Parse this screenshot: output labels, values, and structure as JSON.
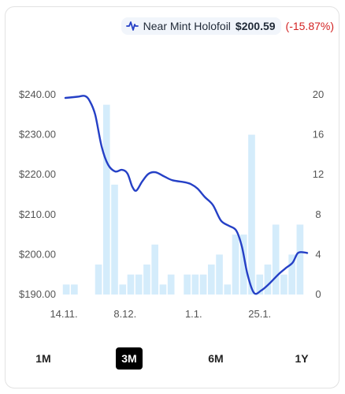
{
  "legend": {
    "icon": "pulse-icon",
    "name": "Near Mint Holofoil",
    "price": "$200.59",
    "change": "(-15.87%)",
    "change_color": "#d32222",
    "line_color": "#2540c6",
    "bar_color": "#d4ecfb"
  },
  "ranges": [
    {
      "label": "1M",
      "active": false
    },
    {
      "label": "3M",
      "active": true
    },
    {
      "label": "6M",
      "active": false
    },
    {
      "label": "1Y",
      "active": false
    }
  ],
  "chart_data": {
    "type": "bar+line",
    "x_ticks": [
      "14.11.",
      "8.12.",
      "1.1.",
      "25.1."
    ],
    "left_axis": {
      "ticks": [
        "$190.00",
        "$200.00",
        "$210.00",
        "$220.00",
        "$230.00",
        "$240.00"
      ],
      "range": [
        190,
        240
      ]
    },
    "right_axis": {
      "ticks": [
        "0",
        "4",
        "8",
        "12",
        "16",
        "20"
      ],
      "range": [
        0,
        20
      ]
    },
    "grid": false,
    "series": [
      {
        "type": "bar",
        "axis": "right",
        "values": [
          1,
          1,
          0,
          0,
          3,
          19,
          11,
          1,
          2,
          2,
          3,
          5,
          1,
          2,
          0,
          2,
          2,
          2,
          3,
          4,
          1,
          6,
          6,
          16,
          2,
          3,
          7,
          2,
          4,
          7
        ]
      },
      {
        "type": "line",
        "axis": "left",
        "points": [
          [
            0,
            239.2
          ],
          [
            1.5,
            239.5
          ],
          [
            2.4,
            239.7
          ],
          [
            3.0,
            238.5
          ],
          [
            3.7,
            235.0
          ],
          [
            4.5,
            227.0
          ],
          [
            5.3,
            222.5
          ],
          [
            6.2,
            220.8
          ],
          [
            7.0,
            221.2
          ],
          [
            7.7,
            220.3
          ],
          [
            8.3,
            217.0
          ],
          [
            8.8,
            216.0
          ],
          [
            9.5,
            218.2
          ],
          [
            10.3,
            220.2
          ],
          [
            11.2,
            220.6
          ],
          [
            12.3,
            219.5
          ],
          [
            13.3,
            218.6
          ],
          [
            14.8,
            218.1
          ],
          [
            15.6,
            217.6
          ],
          [
            16.4,
            216.5
          ],
          [
            17.3,
            214.4
          ],
          [
            18.3,
            212.4
          ],
          [
            19.3,
            208.5
          ],
          [
            20.3,
            207.2
          ],
          [
            21.2,
            206.0
          ],
          [
            21.9,
            202.0
          ],
          [
            22.6,
            195.0
          ],
          [
            23.4,
            190.4
          ],
          [
            24.3,
            191.0
          ],
          [
            25.3,
            192.7
          ],
          [
            26.4,
            195.0
          ],
          [
            27.4,
            196.7
          ],
          [
            28.2,
            198.0
          ],
          [
            28.8,
            200.3
          ],
          [
            29.4,
            200.6
          ],
          [
            30.0,
            200.4
          ]
        ]
      }
    ]
  }
}
